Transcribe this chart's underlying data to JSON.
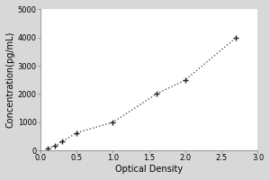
{
  "x_data": [
    0.1,
    0.2,
    0.3,
    0.5,
    1.0,
    1.6,
    2.0,
    2.7
  ],
  "y_data": [
    78,
    156,
    313,
    625,
    1000,
    2000,
    2500,
    4000
  ],
  "xlabel": "Optical Density",
  "ylabel": "Concentration(pg/mL)",
  "xlim": [
    0,
    3
  ],
  "ylim": [
    0,
    5000
  ],
  "xticks": [
    0,
    0.5,
    1,
    1.5,
    2,
    2.5,
    3
  ],
  "yticks": [
    0,
    1000,
    2000,
    3000,
    4000,
    5000
  ],
  "line_color": "#555555",
  "marker_color": "#222222",
  "outer_bg_color": "#d8d8d8",
  "plot_bg_color": "#ffffff",
  "marker": "+",
  "linestyle": "dotted",
  "title_fontsize": 7,
  "label_fontsize": 7,
  "tick_fontsize": 6
}
